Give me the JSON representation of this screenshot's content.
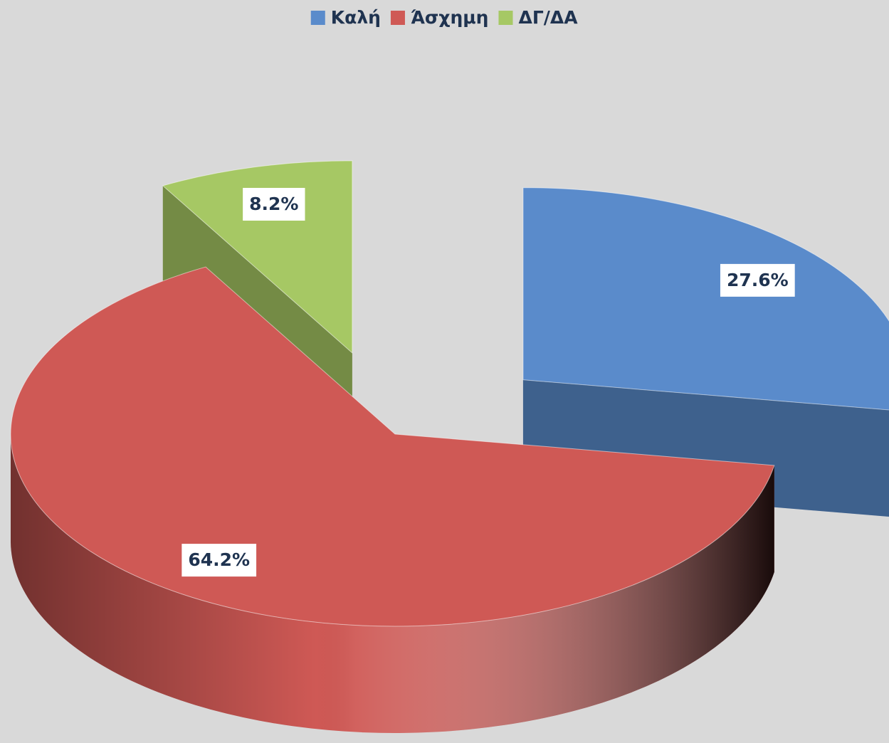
{
  "chart_data": {
    "type": "pie3d",
    "categories": [
      "Καλή",
      "Άσχημη",
      "ΔΓ/ΔΑ"
    ],
    "values": [
      27.6,
      64.2,
      8.2
    ],
    "value_labels": [
      "27.6%",
      "64.2%",
      "8.2%"
    ],
    "colors": [
      "#5a8bcb",
      "#cf5955",
      "#a6c864"
    ],
    "legend": "top"
  }
}
